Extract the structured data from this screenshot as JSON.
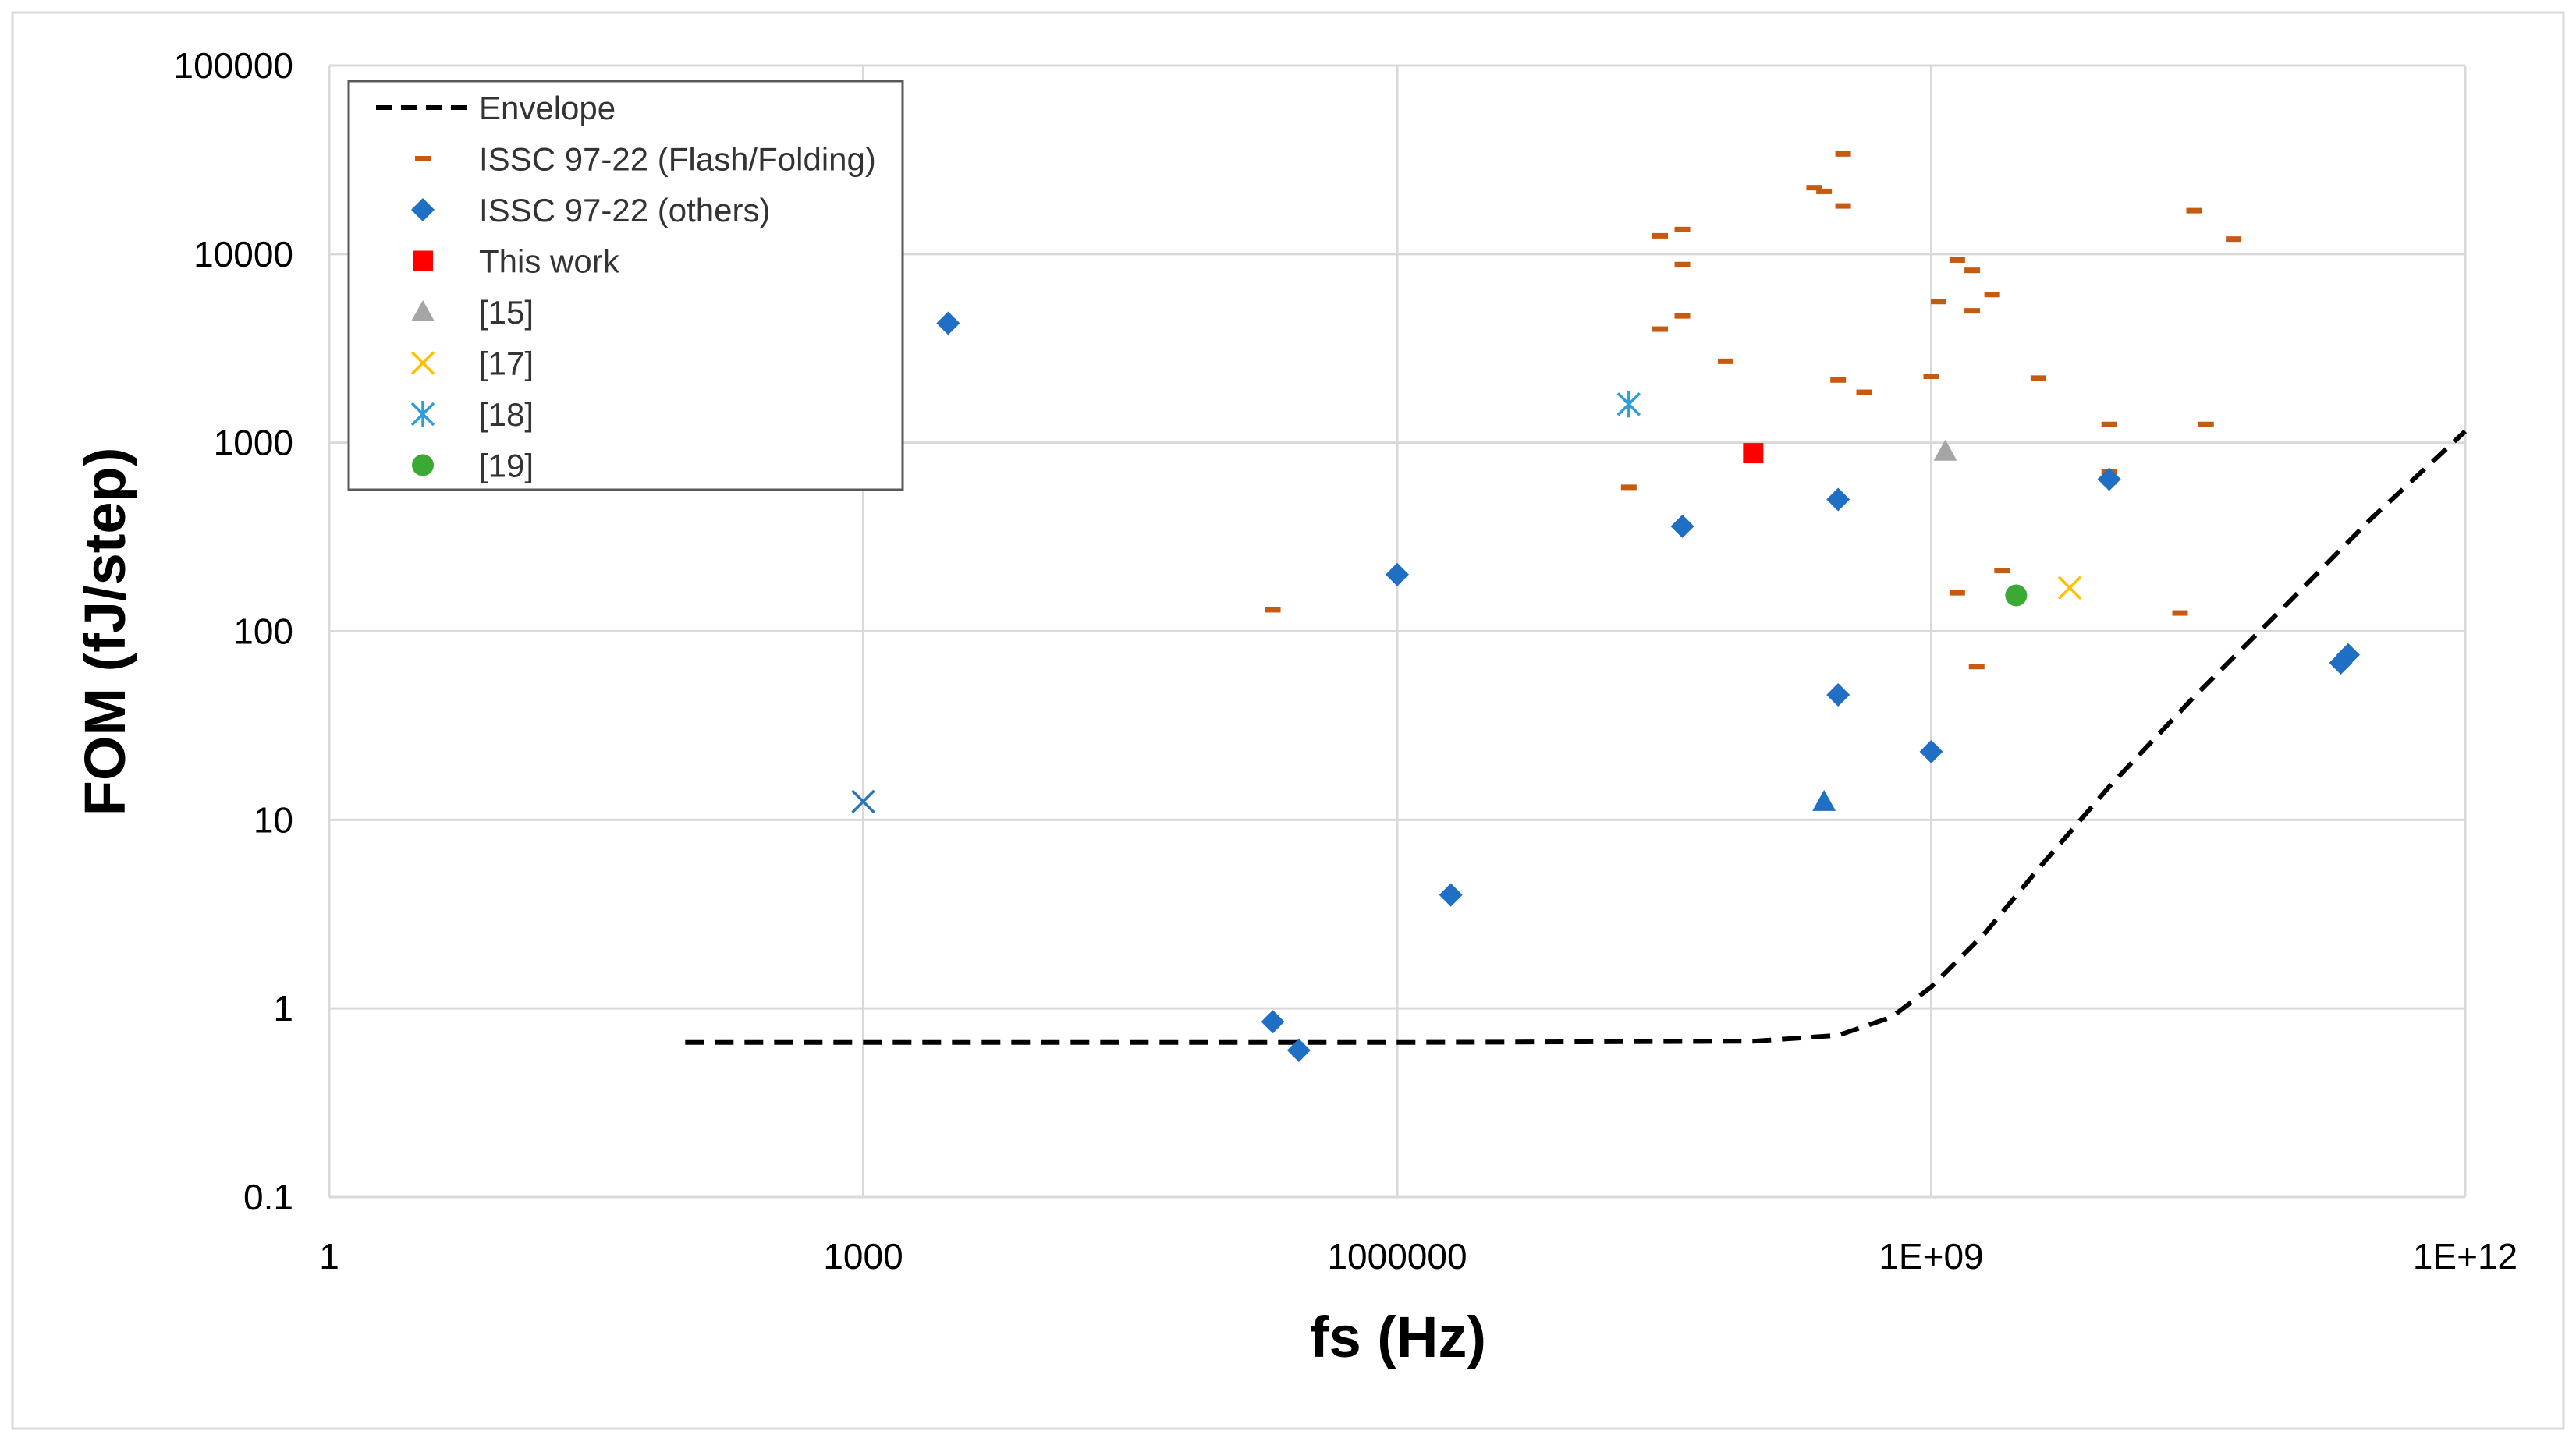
{
  "chart_data": {
    "type": "scatter",
    "title": "",
    "xlabel": "fs (Hz)",
    "ylabel": "FOM (fJ/step)",
    "xscale": "log",
    "yscale": "log",
    "xlim": [
      1,
      1000000000000
    ],
    "ylim": [
      0.1,
      100000
    ],
    "grid": true,
    "legend_position": "top-left",
    "x_ticks": [
      {
        "value": 1,
        "label": "1"
      },
      {
        "value": 1000,
        "label": "1000"
      },
      {
        "value": 1000000,
        "label": "1000000"
      },
      {
        "value": 1000000000,
        "label": "1E+09"
      },
      {
        "value": 1000000000000,
        "label": "1E+12"
      }
    ],
    "y_ticks": [
      {
        "value": 0.1,
        "label": "0.1"
      },
      {
        "value": 1,
        "label": "1"
      },
      {
        "value": 10,
        "label": "10"
      },
      {
        "value": 100,
        "label": "100"
      },
      {
        "value": 1000,
        "label": "1000"
      },
      {
        "value": 10000,
        "label": "10000"
      },
      {
        "value": 100000,
        "label": "100000"
      }
    ],
    "series": [
      {
        "name": "Envelope",
        "marker": "dashed-line",
        "color": "#000000",
        "points": [
          [
            100,
            0.66
          ],
          [
            1000000,
            0.66
          ],
          [
            100000000,
            0.67
          ],
          [
            300000000,
            0.72
          ],
          [
            600000000,
            0.9
          ],
          [
            1000000000,
            1.3
          ],
          [
            2000000000,
            2.5
          ],
          [
            4000000000,
            5.5
          ],
          [
            10000000000,
            15
          ],
          [
            30000000000,
            45
          ],
          [
            100000000000,
            140
          ],
          [
            300000000000,
            400
          ],
          [
            1000000000000,
            1150
          ]
        ]
      },
      {
        "name": "ISSC 97-22 (Flash/Folding)",
        "marker": "dash",
        "color": "#C55A11",
        "points": [
          [
            200000,
            130
          ],
          [
            20000000,
            580
          ],
          [
            30000000,
            4000
          ],
          [
            40000000,
            4700
          ],
          [
            40000000,
            8800
          ],
          [
            30000000,
            12500
          ],
          [
            40000000,
            13500
          ],
          [
            70000000,
            2700
          ],
          [
            220000000,
            22500
          ],
          [
            250000000,
            21500
          ],
          [
            320000000,
            18000
          ],
          [
            320000000,
            34000
          ],
          [
            300000000,
            2150
          ],
          [
            420000000,
            1850
          ],
          [
            1000000000,
            2250
          ],
          [
            1100000000,
            5600
          ],
          [
            1400000000,
            9300
          ],
          [
            1700000000,
            8200
          ],
          [
            1700000000,
            5000
          ],
          [
            2200000000,
            6100
          ],
          [
            2500000000,
            210
          ],
          [
            1400000000,
            160
          ],
          [
            1800000000,
            65
          ],
          [
            4000000000,
            2200
          ],
          [
            10000000000,
            1250
          ],
          [
            10000000000,
            700
          ],
          [
            10000000000,
            620
          ],
          [
            30000000000,
            17000
          ],
          [
            50000000000,
            12000
          ],
          [
            35000000000,
            1250
          ],
          [
            25000000000,
            125
          ]
        ]
      },
      {
        "name": "ISSC 97-22 (others)",
        "marker": "diamond",
        "color": "#1F6FC5",
        "points": [
          [
            3000,
            4300
          ],
          [
            200000,
            0.85
          ],
          [
            280000,
            0.6
          ],
          [
            1000000,
            200
          ],
          [
            2000000,
            4
          ],
          [
            40000000,
            360
          ],
          [
            300000000,
            500
          ],
          [
            300000000,
            46
          ],
          [
            1000000000,
            23
          ],
          [
            10000000000,
            640
          ],
          [
            200000000000,
            68
          ],
          [
            220000000000,
            75
          ]
        ]
      },
      {
        "name": "ISSC 97-22 (others) triangle",
        "marker": "triangle",
        "color": "#1F6FC5",
        "points": [
          [
            250000000,
            12.5
          ]
        ]
      },
      {
        "name": "Unlisted",
        "marker": "x",
        "color": "#2E75B6",
        "points": [
          [
            1000,
            12.5
          ]
        ]
      },
      {
        "name": "This work",
        "marker": "square",
        "color": "#FF0000",
        "points": [
          [
            100000000,
            880
          ]
        ]
      },
      {
        "name": "[15]",
        "marker": "triangle",
        "color": "#A5A5A5",
        "points": [
          [
            1200000000,
            900
          ]
        ]
      },
      {
        "name": "[17]",
        "marker": "x",
        "color": "#FFC000",
        "points": [
          [
            6000000000,
            170
          ]
        ]
      },
      {
        "name": "[18]",
        "marker": "asterisk",
        "color": "#2E9CD6",
        "points": [
          [
            20000000,
            1600
          ]
        ]
      },
      {
        "name": "[19]",
        "marker": "circle",
        "color": "#3AAA35",
        "points": [
          [
            3000000000,
            155
          ]
        ]
      }
    ],
    "legend": [
      {
        "label": "Envelope",
        "marker": "dashed-line",
        "color": "#000000"
      },
      {
        "label": "ISSC 97-22 (Flash/Folding)",
        "marker": "dash",
        "color": "#C55A11"
      },
      {
        "label": "ISSC 97-22 (others)",
        "marker": "diamond",
        "color": "#1F6FC5"
      },
      {
        "label": "This work",
        "marker": "square",
        "color": "#FF0000"
      },
      {
        "label": "[15]",
        "marker": "triangle",
        "color": "#A5A5A5"
      },
      {
        "label": "[17]",
        "marker": "x",
        "color": "#FFC000"
      },
      {
        "label": "[18]",
        "marker": "asterisk",
        "color": "#2E9CD6"
      },
      {
        "label": "[19]",
        "marker": "circle",
        "color": "#3AAA35"
      }
    ]
  }
}
